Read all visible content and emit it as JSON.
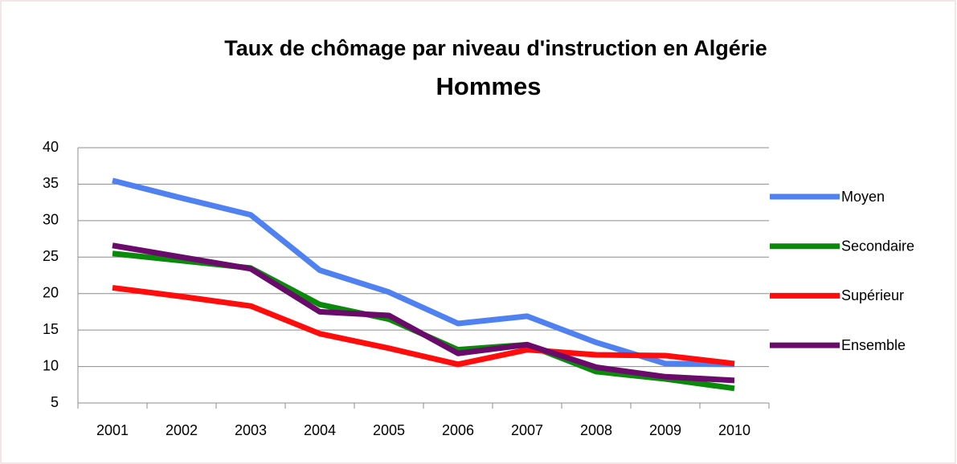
{
  "chart_data": {
    "type": "line",
    "title": "Taux de chômage par niveau d'instruction en Algérie",
    "subtitle": "Hommes",
    "categories": [
      "2001",
      "2002",
      "2003",
      "2004",
      "2005",
      "2006",
      "2007",
      "2008",
      "2009",
      "2010"
    ],
    "series": [
      {
        "name": "Moyen",
        "color": "#4f81f0",
        "values": [
          35.5,
          33.1,
          30.8,
          23.2,
          20.2,
          15.9,
          16.9,
          13.3,
          10.4,
          10.3
        ]
      },
      {
        "name": "Secondaire",
        "color": "#0a8a0a",
        "values": [
          25.5,
          24.5,
          23.5,
          18.5,
          16.5,
          12.3,
          13.0,
          9.3,
          8.3,
          7.0
        ]
      },
      {
        "name": "Supérieur",
        "color": "#ff0d0d",
        "values": [
          20.8,
          19.6,
          18.3,
          14.5,
          12.5,
          10.3,
          12.3,
          11.6,
          11.5,
          10.4
        ]
      },
      {
        "name": "Ensemble",
        "color": "#6a0a6a",
        "values": [
          26.6,
          25.0,
          23.4,
          17.5,
          17.0,
          11.8,
          13.0,
          9.9,
          8.6,
          8.1
        ]
      }
    ],
    "ylim": [
      5,
      40
    ],
    "yticks": [
      5,
      10,
      15,
      20,
      25,
      30,
      35,
      40
    ],
    "grid": true,
    "legend": "right"
  }
}
